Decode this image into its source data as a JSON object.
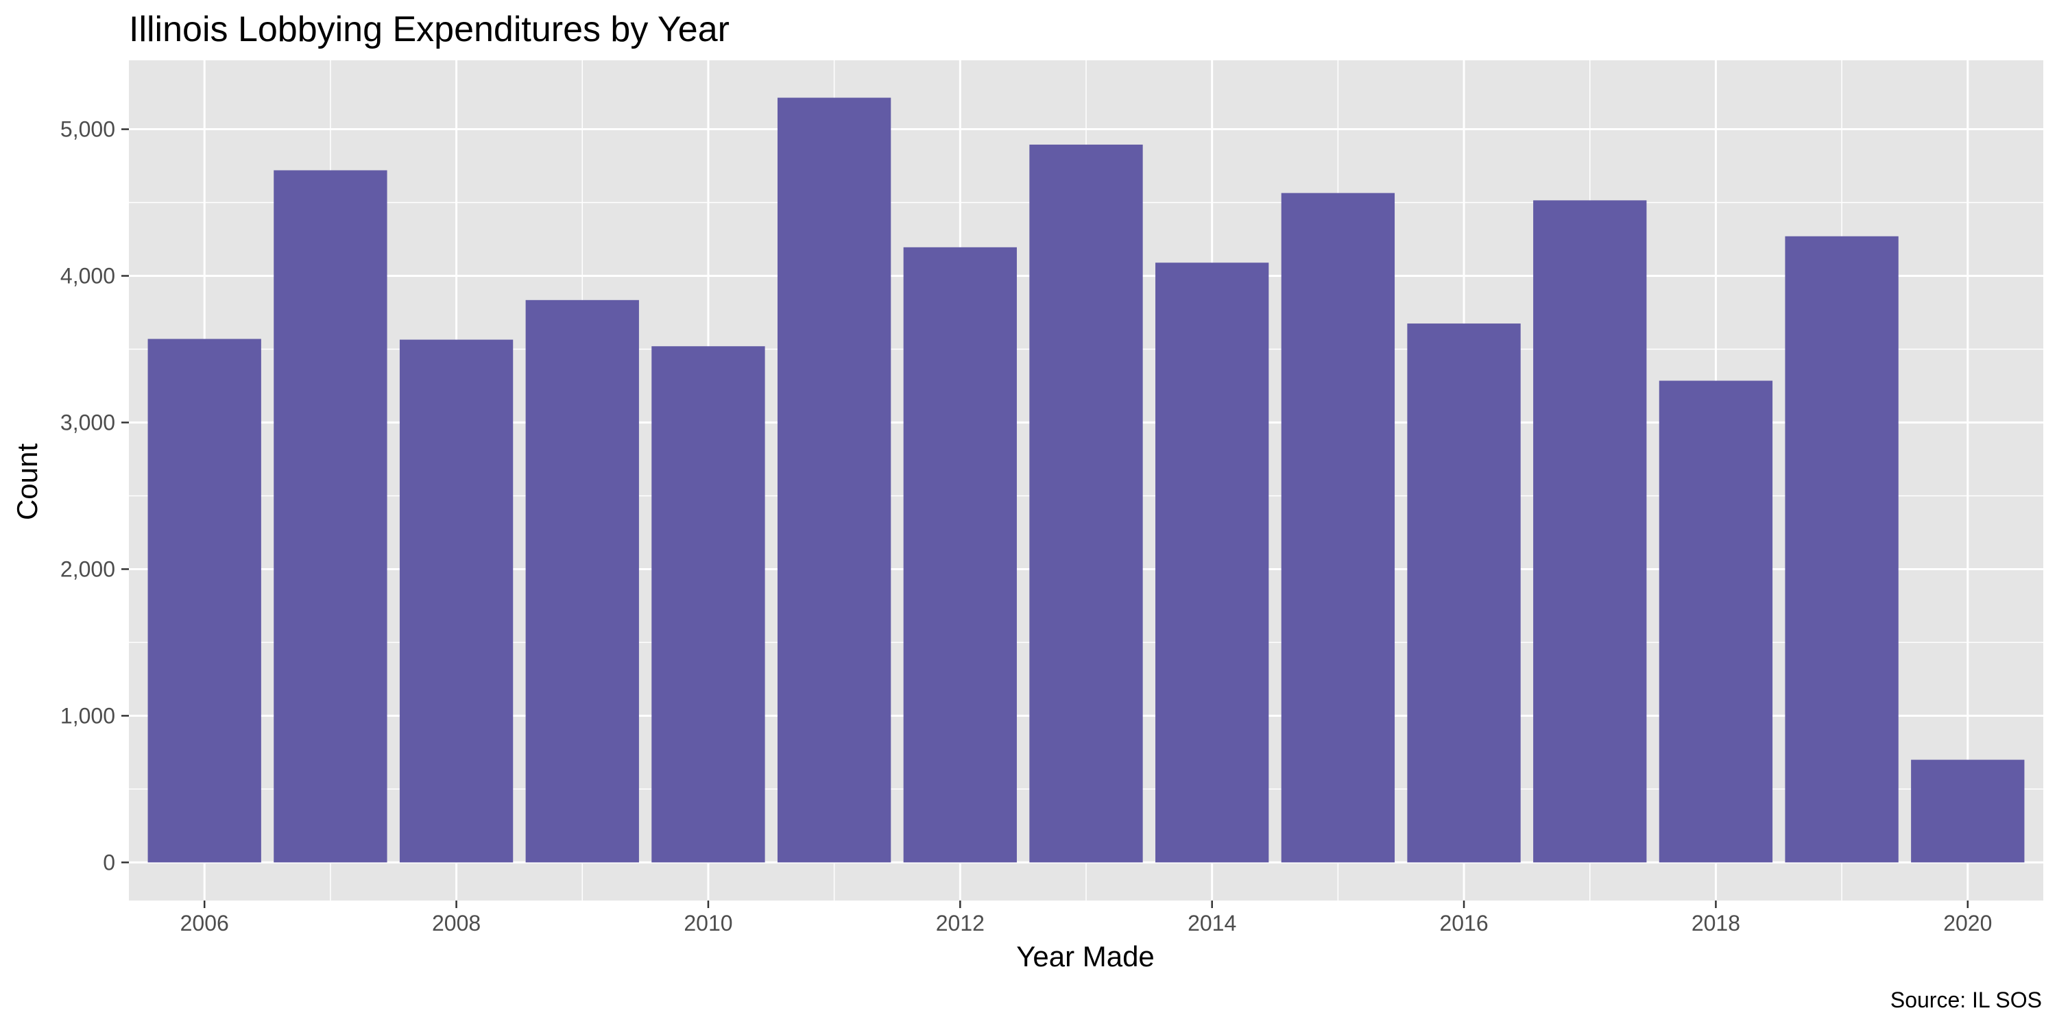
{
  "chart_data": {
    "type": "bar",
    "title": "Illinois Lobbying Expenditures by Year",
    "xlabel": "Year Made",
    "ylabel": "Count",
    "caption": "Source: IL SOS",
    "categories": [
      2006,
      2007,
      2008,
      2009,
      2010,
      2011,
      2012,
      2013,
      2014,
      2015,
      2016,
      2017,
      2018,
      2019,
      2020
    ],
    "values": [
      3570,
      4720,
      3565,
      3835,
      3520,
      5215,
      4195,
      4895,
      4090,
      4565,
      3675,
      4515,
      3285,
      4270,
      700
    ],
    "x_ticks": [
      2006,
      2008,
      2010,
      2012,
      2014,
      2016,
      2018,
      2020
    ],
    "y_ticks": [
      0,
      1000,
      2000,
      3000,
      4000,
      5000
    ],
    "y_tick_labels": [
      "0",
      "1,000",
      "2,000",
      "3,000",
      "4,000",
      "5,000"
    ],
    "ylim": [
      -260,
      5470
    ],
    "xlim": [
      2005.4,
      2020.6
    ],
    "grid": true,
    "bar_color": "#625ba5",
    "panel_color": "#e5e5e5",
    "grid_color": "#ffffff"
  }
}
